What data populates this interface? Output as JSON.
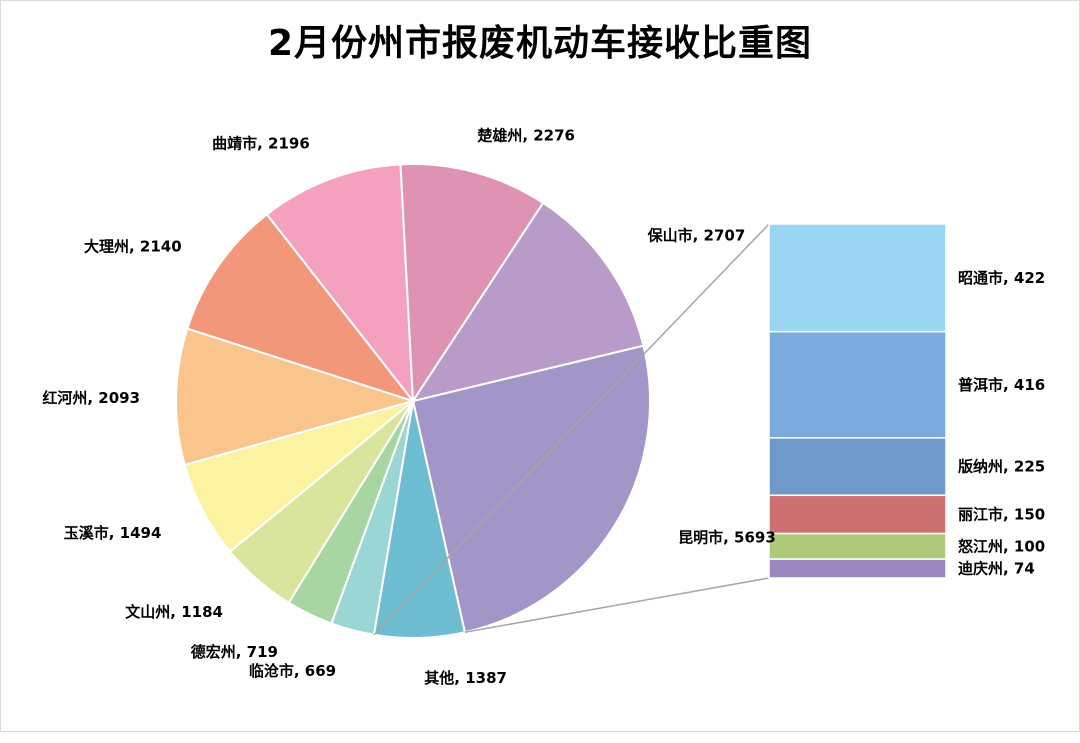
{
  "chart_data": {
    "type": "pie",
    "subtype": "bar-of-pie",
    "title": "2月份州市报废机动车接收比重图",
    "pie": {
      "slices": [
        {
          "label": "昆明市",
          "value": 5693,
          "color": "#a295c7"
        },
        {
          "label": "其他",
          "value": 1387,
          "color": "#6fbdd2"
        },
        {
          "label": "临沧市",
          "value": 669,
          "color": "#99d6d4"
        },
        {
          "label": "德宏州",
          "value": 719,
          "color": "#a8d6a3"
        },
        {
          "label": "文山州",
          "value": 1184,
          "color": "#d9e59c"
        },
        {
          "label": "玉溪市",
          "value": 1494,
          "color": "#fbf3a0"
        },
        {
          "label": "红河州",
          "value": 2093,
          "color": "#fac58d"
        },
        {
          "label": "大理州",
          "value": 2140,
          "color": "#f3977b"
        },
        {
          "label": "曲靖市",
          "value": 2196,
          "color": "#f3a1be"
        },
        {
          "label": "楚雄州",
          "value": 2276,
          "color": "#de93b2"
        },
        {
          "label": "保山市",
          "value": 2707,
          "color": "#b89bc8"
        }
      ]
    },
    "breakout_of": "其他",
    "bar": {
      "segments": [
        {
          "label": "昭通市",
          "value": 422,
          "color": "#9ad6f3"
        },
        {
          "label": "普洱市",
          "value": 416,
          "color": "#7aaadc"
        },
        {
          "label": "版纳州",
          "value": 225,
          "color": "#6f99cb"
        },
        {
          "label": "丽江市",
          "value": 150,
          "color": "#cc716f"
        },
        {
          "label": "怒江州",
          "value": 100,
          "color": "#aec97a"
        },
        {
          "label": "迪庆州",
          "value": 74,
          "color": "#9a87be"
        }
      ]
    },
    "legend": "none",
    "data_labels": "category, value"
  }
}
